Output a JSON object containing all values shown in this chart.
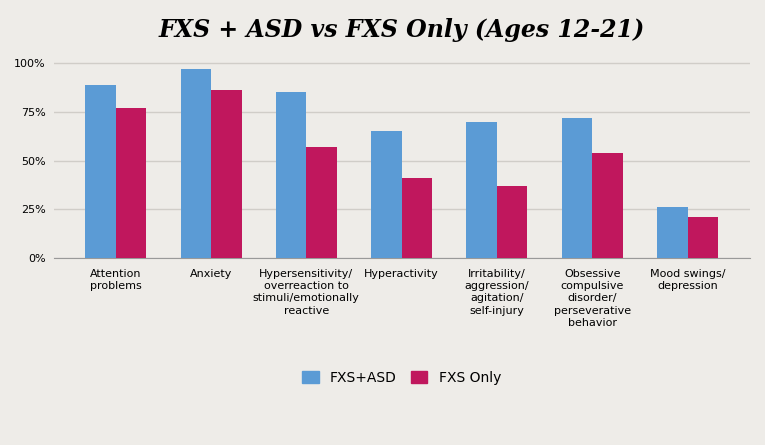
{
  "title": "FXS + ASD vs FXS Only (Ages 12-21)",
  "categories": [
    "Attention\nproblems",
    "Anxiety",
    "Hypersensitivity/\noverreaction to\nstimuli/emotionally\nreactive",
    "Hyperactivity",
    "Irritability/\naggression/\nagitation/\nself-injury",
    "Obsessive\ncompulsive\ndisorder/\nperseverative\nbehavior",
    "Mood swings/\ndepression"
  ],
  "fxs_asd": [
    89,
    97,
    85,
    65,
    70,
    72,
    26
  ],
  "fxs_only": [
    77,
    86,
    57,
    41,
    37,
    54,
    21
  ],
  "color_asd": "#5b9bd5",
  "color_fxs": "#c0175d",
  "background_color": "#eeece8",
  "grid_color": "#d0cdc8",
  "ylim": [
    0,
    105
  ],
  "yticks": [
    0,
    25,
    50,
    75,
    100
  ],
  "ytick_labels": [
    "0%",
    "25%",
    "50%",
    "75%",
    "100%"
  ],
  "legend_labels": [
    "FXS+ASD",
    "FXS Only"
  ],
  "bar_width": 0.32,
  "title_fontsize": 17,
  "tick_fontsize": 8,
  "legend_fontsize": 10
}
